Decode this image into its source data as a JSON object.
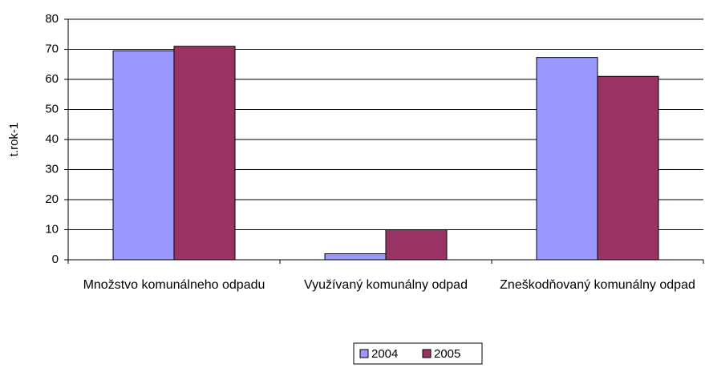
{
  "chart_data": {
    "type": "bar",
    "y_label": "t.rok-1",
    "categories": [
      "Množstvo komunálneho odpadu",
      "Využívaný komunálny odpad",
      "Zneškodňovaný komunálny odpad"
    ],
    "series": [
      {
        "name": "2004",
        "color": "#9999ff",
        "values": [
          69.5,
          2,
          67.3
        ]
      },
      {
        "name": "2005",
        "color": "#993366",
        "values": [
          71,
          10,
          61
        ]
      }
    ],
    "ylim": [
      0,
      80
    ],
    "yticks": [
      0,
      10,
      20,
      30,
      40,
      50,
      60,
      70,
      80
    ],
    "grid": true,
    "legend": "bottom"
  }
}
